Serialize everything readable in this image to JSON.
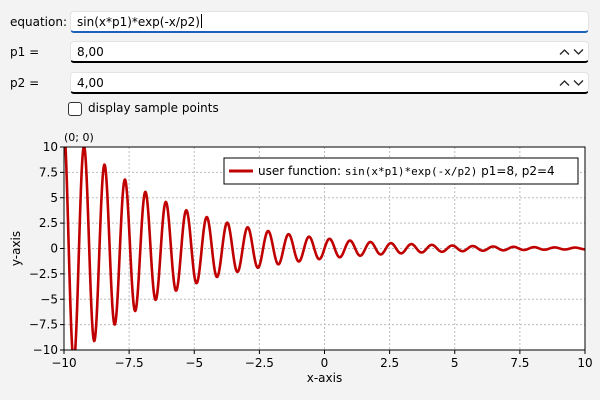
{
  "form": {
    "equation_label": "equation:",
    "equation_value": "sin(x*p1)*exp(-x/p2)",
    "p1_label": "p1 =",
    "p1_value": "8,00",
    "p2_label": "p2 =",
    "p2_value": "4,00",
    "display_points_label": "display sample points",
    "display_points_checked": false
  },
  "chart_data": {
    "type": "line",
    "title": "",
    "xlabel": "x-axis",
    "ylabel": "y-axis",
    "xlim": [
      -10,
      10
    ],
    "ylim": [
      -10,
      10
    ],
    "x_ticks": [
      "−10",
      "−7.5",
      "−5",
      "−2.5",
      "0",
      "2.5",
      "5",
      "7.5",
      "10"
    ],
    "y_ticks": [
      "10",
      "7.5",
      "5",
      "2.5",
      "0",
      "−2.5",
      "−5",
      "−7.5",
      "−10"
    ],
    "grid": true,
    "legend_position": "top-right",
    "coordinate_readout": "(0; 0)",
    "series": [
      {
        "legend_prefix": "user function:",
        "legend_formula": "sin(x*p1)*exp(-x/p2)",
        "legend_params": "p1=8, p2=4",
        "function": "sin(x*p1)*exp(-x/p2)",
        "p1": 8,
        "p2": 4,
        "color": "#c00000"
      }
    ]
  }
}
